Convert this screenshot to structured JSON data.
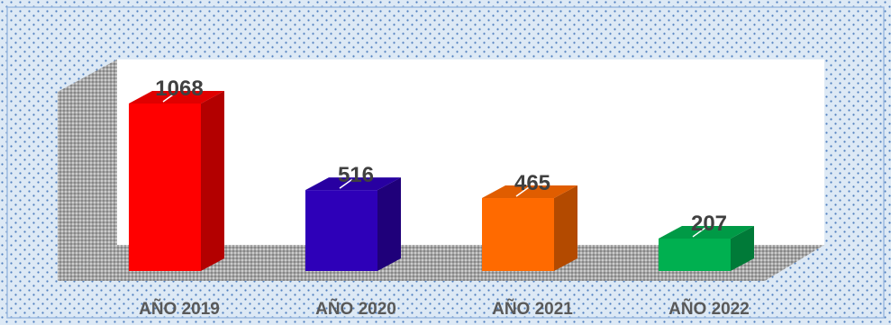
{
  "chart_data": {
    "type": "bar",
    "categories": [
      "AÑO 2019",
      "AÑO 2020",
      "AÑO 2021",
      "AÑO 2022"
    ],
    "values": [
      1068,
      516,
      465,
      207
    ],
    "value_labels": [
      "1068",
      "516",
      "465",
      "207"
    ],
    "colors": [
      "#ff0000",
      "#2e00b8",
      "#ff6a00",
      "#00b050"
    ],
    "side_colors": [
      "#b30000",
      "#1f007a",
      "#b34a00",
      "#007a38"
    ],
    "title": "",
    "xlabel": "",
    "ylabel": "",
    "ylim": [
      0,
      1068
    ],
    "grid": false,
    "legend": "none",
    "style": "3d-column"
  }
}
